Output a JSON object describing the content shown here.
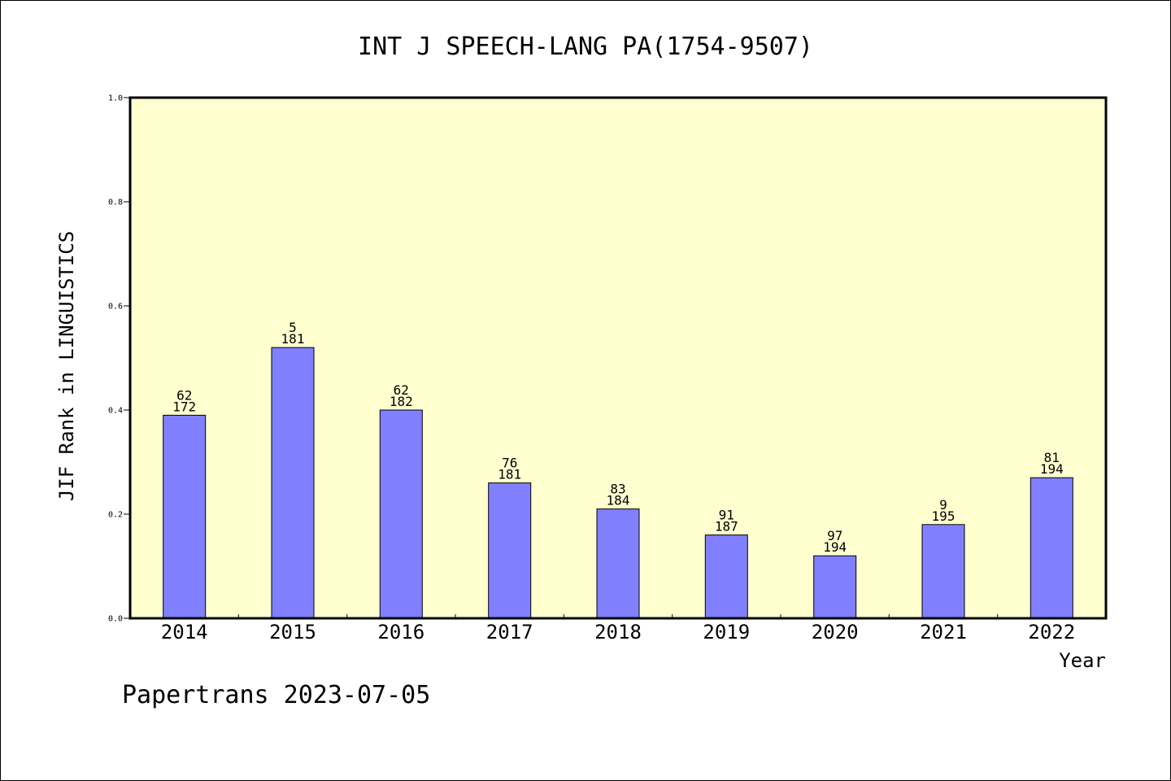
{
  "chart_data": {
    "type": "bar",
    "title": "INT J SPEECH-LANG PA(1754-9507)",
    "ylabel": "JIF Rank in LINGUISTICS",
    "xlabel": "Year",
    "categories": [
      "2014",
      "2015",
      "2016",
      "2017",
      "2018",
      "2019",
      "2020",
      "2021",
      "2022"
    ],
    "values": [
      0.39,
      0.52,
      0.4,
      0.26,
      0.21,
      0.16,
      0.12,
      0.18,
      0.27
    ],
    "labels": [
      {
        "rank": "62",
        "total": "172"
      },
      {
        "rank": "5",
        "total": "181"
      },
      {
        "rank": "62",
        "total": "182"
      },
      {
        "rank": "76",
        "total": "181"
      },
      {
        "rank": "83",
        "total": "184"
      },
      {
        "rank": "91",
        "total": "187"
      },
      {
        "rank": "97",
        "total": "194"
      },
      {
        "rank": "9",
        "total": "195"
      },
      {
        "rank": "81",
        "total": "194"
      }
    ],
    "ylim": [
      0,
      1.0
    ],
    "yticks": [
      "0.0",
      "0.2",
      "0.4",
      "0.6",
      "0.8",
      "1.0"
    ],
    "grid": false,
    "colors": {
      "bar": "#8080ff",
      "plot_background": "#ffffd0"
    }
  },
  "footer": {
    "text": "Papertrans 2023-07-05"
  }
}
